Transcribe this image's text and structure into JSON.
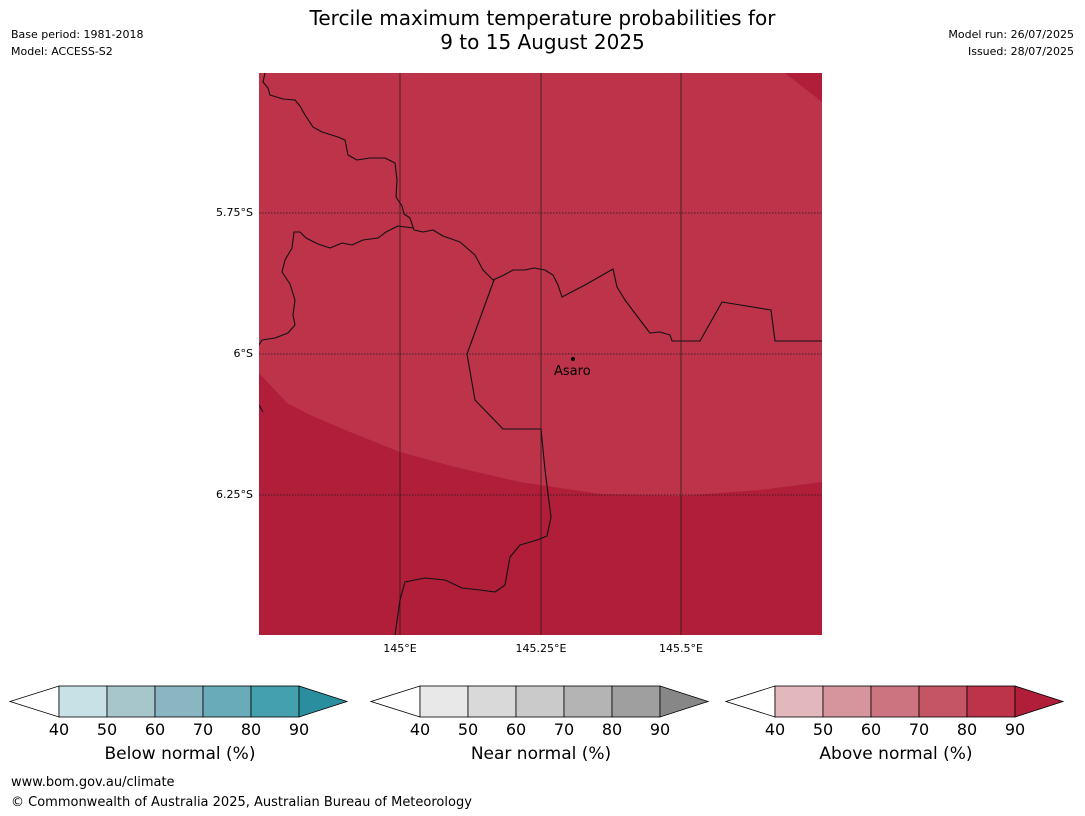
{
  "title_line1": "Tercile maximum temperature probabilities for",
  "title_line2": "9 to 15 August 2025",
  "header_left": {
    "base_period": "Base period: 1981-2018",
    "model": "Model: ACCESS-S2"
  },
  "header_right": {
    "model_run": "Model run: 26/07/2025",
    "issued": "Issued: 28/07/2025"
  },
  "map": {
    "lat_labels": [
      "5.75°S",
      "6°S",
      "6.25°S"
    ],
    "lon_labels": [
      "145°E",
      "145.25°E",
      "145.5°E"
    ],
    "place": "Asaro",
    "colors": {
      "above_80": "#bc334a",
      "above_90": "#b01e3a",
      "border": "#111111",
      "grid": "#1a1a1a"
    }
  },
  "legends": [
    {
      "title": "Below normal (%)",
      "ticks": [
        "40",
        "50",
        "60",
        "70",
        "80",
        "90"
      ],
      "colors": [
        "#ffffff",
        "#c8e1e7",
        "#a7c6cc",
        "#8ab5c2",
        "#6aabba",
        "#45a0ae",
        "#2b8e9f"
      ]
    },
    {
      "title": "Near normal (%)",
      "ticks": [
        "40",
        "50",
        "60",
        "70",
        "80",
        "90"
      ],
      "colors": [
        "#ffffff",
        "#e8e8e8",
        "#d9d9d9",
        "#cacaca",
        "#b4b4b4",
        "#9f9f9f",
        "#878787"
      ]
    },
    {
      "title": "Above normal (%)",
      "ticks": [
        "40",
        "50",
        "60",
        "70",
        "80",
        "90"
      ],
      "colors": [
        "#ffffff",
        "#e2b8bd",
        "#d6959d",
        "#cc7580",
        "#c55565",
        "#bc334a",
        "#b01e3a"
      ]
    }
  ],
  "footer": {
    "url": "www.bom.gov.au/climate",
    "copyright": "© Commonwealth of Australia 2025, Australian Bureau of Meteorology"
  }
}
